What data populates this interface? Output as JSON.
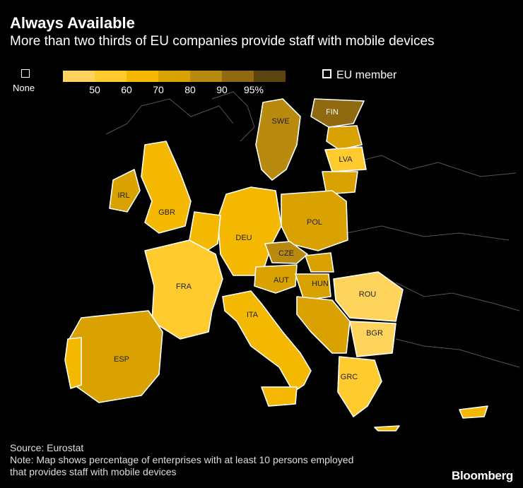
{
  "header": {
    "title": "Always Available",
    "subtitle": "More than two thirds of EU companies provide staff with mobile devices"
  },
  "legend": {
    "none_label": "None",
    "ticks": [
      "50",
      "60",
      "70",
      "80",
      "90",
      "95%"
    ],
    "scale_colors": [
      "#ffd45c",
      "#ffcb2e",
      "#f5b800",
      "#d9a200",
      "#b88a10",
      "#8f6a10",
      "#5c4410"
    ],
    "eu_label": "EU member"
  },
  "map": {
    "country_labels": {
      "swe": "SWE",
      "fin": "FIN",
      "lva": "LVA",
      "irl": "IRL",
      "gbr": "GBR",
      "deu": "DEU",
      "pol": "POL",
      "cze": "CZE",
      "aut": "AUT",
      "hun": "HUN",
      "rou": "ROU",
      "fra": "FRA",
      "ita": "ITA",
      "bgr": "BGR",
      "esp": "ESP",
      "grc": "GRC"
    }
  },
  "footer": {
    "source": "Source: Eurostat",
    "note_line1": "Note: Map shows percentage of enterprises with at least 10 persons employed",
    "note_line2": "that provides staff with mobile devices",
    "brand": "Bloomberg"
  }
}
